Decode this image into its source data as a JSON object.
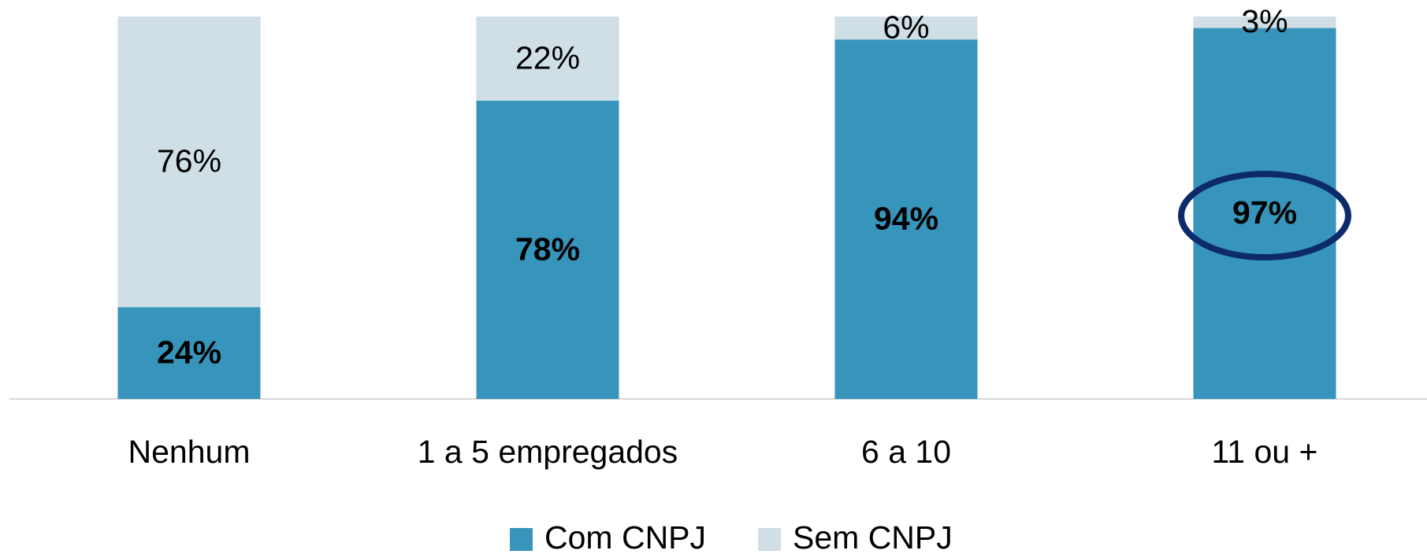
{
  "chart_data": {
    "type": "stacked_bar",
    "categories": [
      "Nenhum",
      "1 a 5 empregados",
      "6 a 10",
      "11 ou +"
    ],
    "series": [
      {
        "name": "Com CNPJ",
        "color": "#3795bc",
        "values": [
          24,
          78,
          94,
          97
        ],
        "value_labels": [
          "24%",
          "78%",
          "94%",
          "97%"
        ]
      },
      {
        "name": "Sem CNPJ",
        "color": "#cfdfe5",
        "values": [
          76,
          22,
          6,
          3
        ],
        "value_labels": [
          "76%",
          "22%",
          "6%",
          "3%"
        ]
      }
    ],
    "legend": "bottom"
  }
}
